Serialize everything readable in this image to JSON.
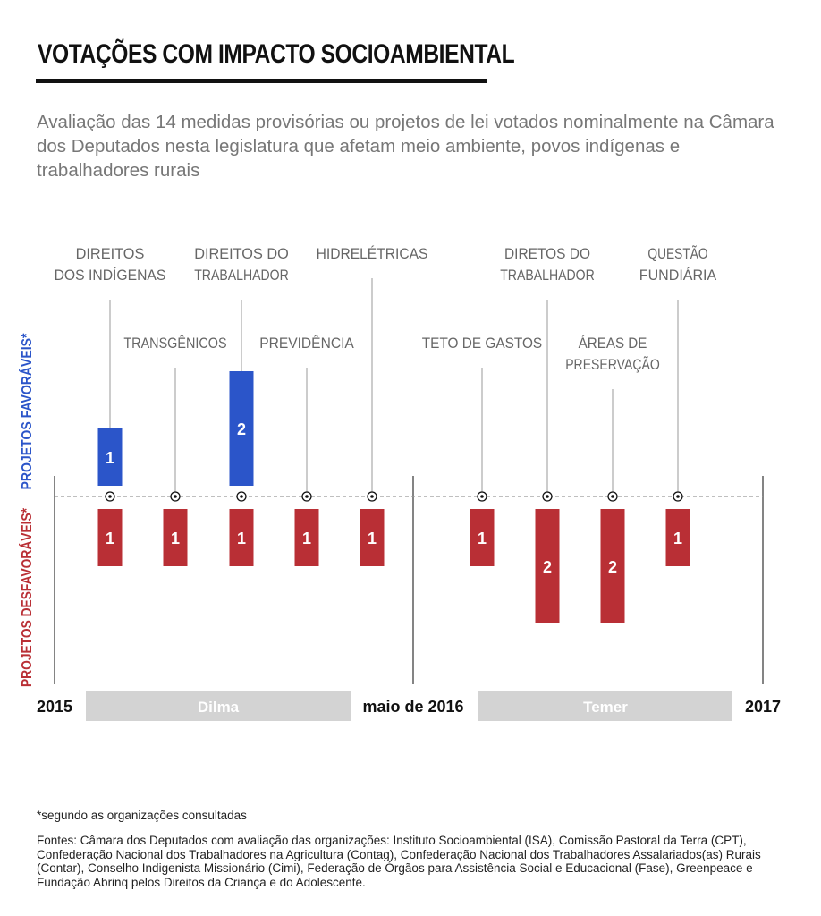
{
  "title": "VOTAÇÕES COM IMPACTO SOCIOAMBIENTAL",
  "subtitle": "Avaliação das 14 medidas provisórias ou projetos de lei votados nominalmente na Câmara dos Deputados nesta legislatura que afetam meio ambiente, povos indígenas e trabalhadores rurais",
  "footnote": "*segundo as organizações consultadas",
  "sources": "Fontes: Câmara dos Deputados com avaliação das organizações: Instituto Socioambiental (ISA), Comissão Pastoral da Terra (CPT), Confederação Nacional dos Trabalhadores na Agricultura (Contag), Confederação Nacional dos Trabalhadores Assalariados(as) Rurais (Contar), Conselho Indigenista Missionário (Cimi), Federação de Órgãos para Assistência Social e Educacional (Fase), Greenpeace e Fundação Abrinq pelos Direitos da Criança e do Adolescente.",
  "colors": {
    "favoravel": "#2b55c9",
    "desfavoravel": "#b92f35",
    "period_band": "#d3d3d3",
    "axis_text": "#111111",
    "label_text": "#666666"
  },
  "chart_data": {
    "type": "bar",
    "ylabel_positive": "PROJETOS FAVORÁVEIS*",
    "ylabel_negative": "PROJETOS DESFAVORÁVEIS*",
    "ylim": [
      -3,
      3
    ],
    "time_labels": [
      "2015",
      "maio de 2016",
      "2017"
    ],
    "periods": [
      "Dilma",
      "Temer"
    ],
    "categories": [
      {
        "label": [
          "DIREITOS",
          "DOS INDÍGENAS"
        ],
        "tier": "high",
        "favoraveis": 1,
        "desfavoraveis": 1,
        "period": "Dilma"
      },
      {
        "label": [
          "TRANSGÊNICOS"
        ],
        "tier": "low",
        "favoraveis": 0,
        "desfavoraveis": 1,
        "period": "Dilma"
      },
      {
        "label": [
          "DIREITOS DO",
          "TRABALHADOR"
        ],
        "tier": "high",
        "favoraveis": 2,
        "desfavoraveis": 1,
        "period": "Dilma"
      },
      {
        "label": [
          "PREVIDÊNCIA"
        ],
        "tier": "low",
        "favoraveis": 0,
        "desfavoraveis": 1,
        "period": "Dilma"
      },
      {
        "label": [
          "HIDRELÉTRICAS"
        ],
        "tier": "high",
        "favoraveis": 0,
        "desfavoraveis": 1,
        "period": "Dilma"
      },
      {
        "label": [
          "TETO DE GASTOS"
        ],
        "tier": "low",
        "favoraveis": 0,
        "desfavoraveis": 1,
        "period": "Temer"
      },
      {
        "label": [
          "DIRETOS DO",
          "TRABALHADOR"
        ],
        "tier": "high",
        "favoraveis": 0,
        "desfavoraveis": 2,
        "period": "Temer"
      },
      {
        "label": [
          "ÁREAS DE",
          "PRESERVAÇÃO"
        ],
        "tier": "low",
        "favoraveis": 0,
        "desfavoraveis": 2,
        "period": "Temer"
      },
      {
        "label": [
          "QUESTÃO",
          "FUNDIÁRIA"
        ],
        "tier": "high",
        "favoraveis": 0,
        "desfavoraveis": 1,
        "period": "Temer"
      }
    ]
  }
}
